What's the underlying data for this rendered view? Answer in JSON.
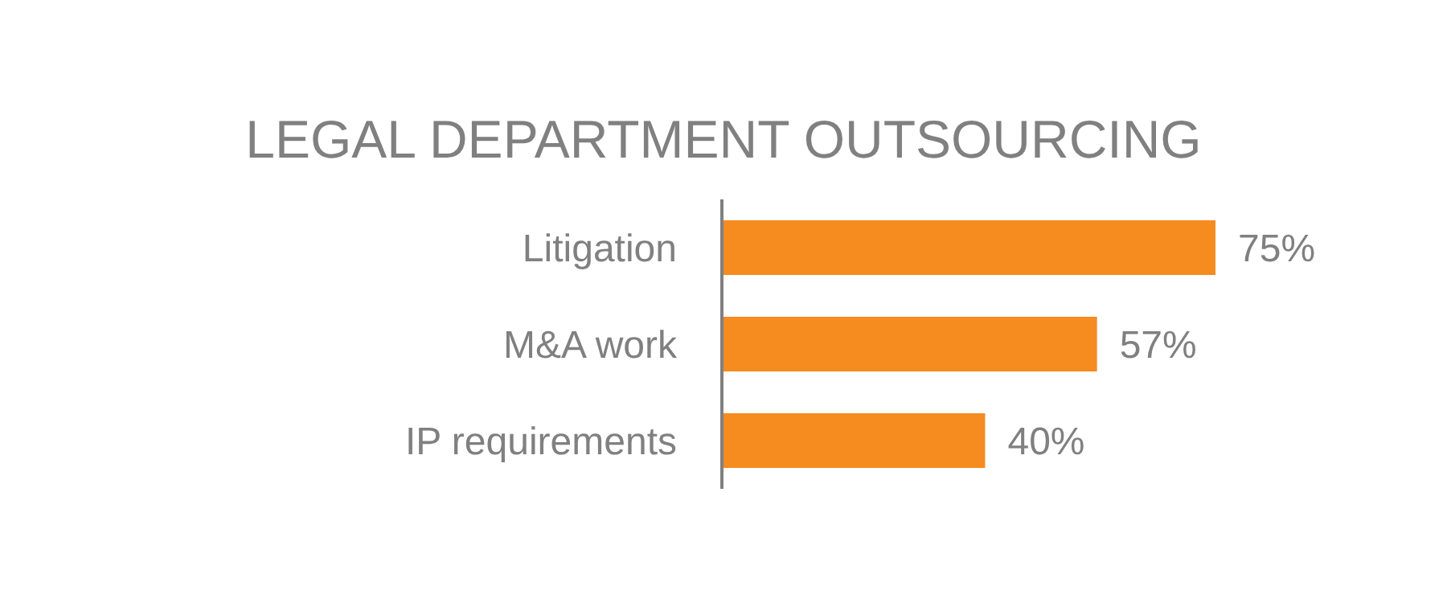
{
  "chart_data": {
    "type": "bar",
    "orientation": "horizontal",
    "title": "LEGAL DEPARTMENT OUTSOURCING",
    "categories": [
      "Litigation",
      "M&A work",
      "IP requirements"
    ],
    "values": [
      75,
      57,
      40
    ],
    "value_labels": [
      "75%",
      "57%",
      "40%"
    ],
    "color": "#f68b1f"
  }
}
